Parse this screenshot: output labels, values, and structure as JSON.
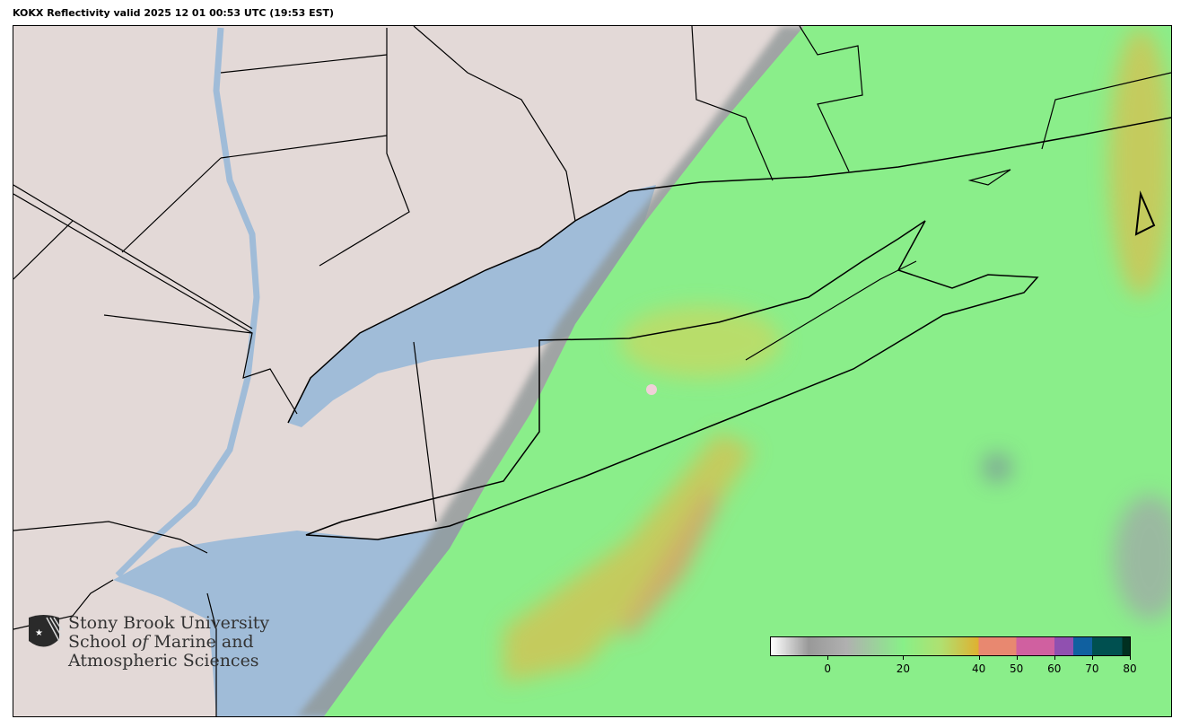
{
  "title": "KOKX Reflectivity valid 2025 12 01 00:53 UTC (19:53 EST)",
  "logo": {
    "line1": "Stony Brook University",
    "line2a": "School ",
    "line2b": "of",
    "line2c": " Marine and",
    "line3": "Atmospheric Sciences"
  },
  "colorbar": {
    "range": [
      -15,
      80
    ],
    "ticks": [
      "0",
      "20",
      "40",
      "50",
      "60",
      "70",
      "80"
    ],
    "tick_values": [
      0,
      20,
      40,
      50,
      60,
      70,
      80
    ],
    "colors": {
      "low": "#ffffff",
      "gray": "#999999",
      "green": "#88f088",
      "yellow": "#e0b030",
      "orange": "#e88870",
      "pink": "#d060a0",
      "purple": "#9050b0",
      "blue": "#1060a0",
      "teal": "#005050",
      "dark": "#003020"
    }
  },
  "map": {
    "land": "#e3d9d7",
    "water": "#a0bcd8",
    "radar_light": "#88ee88"
  }
}
